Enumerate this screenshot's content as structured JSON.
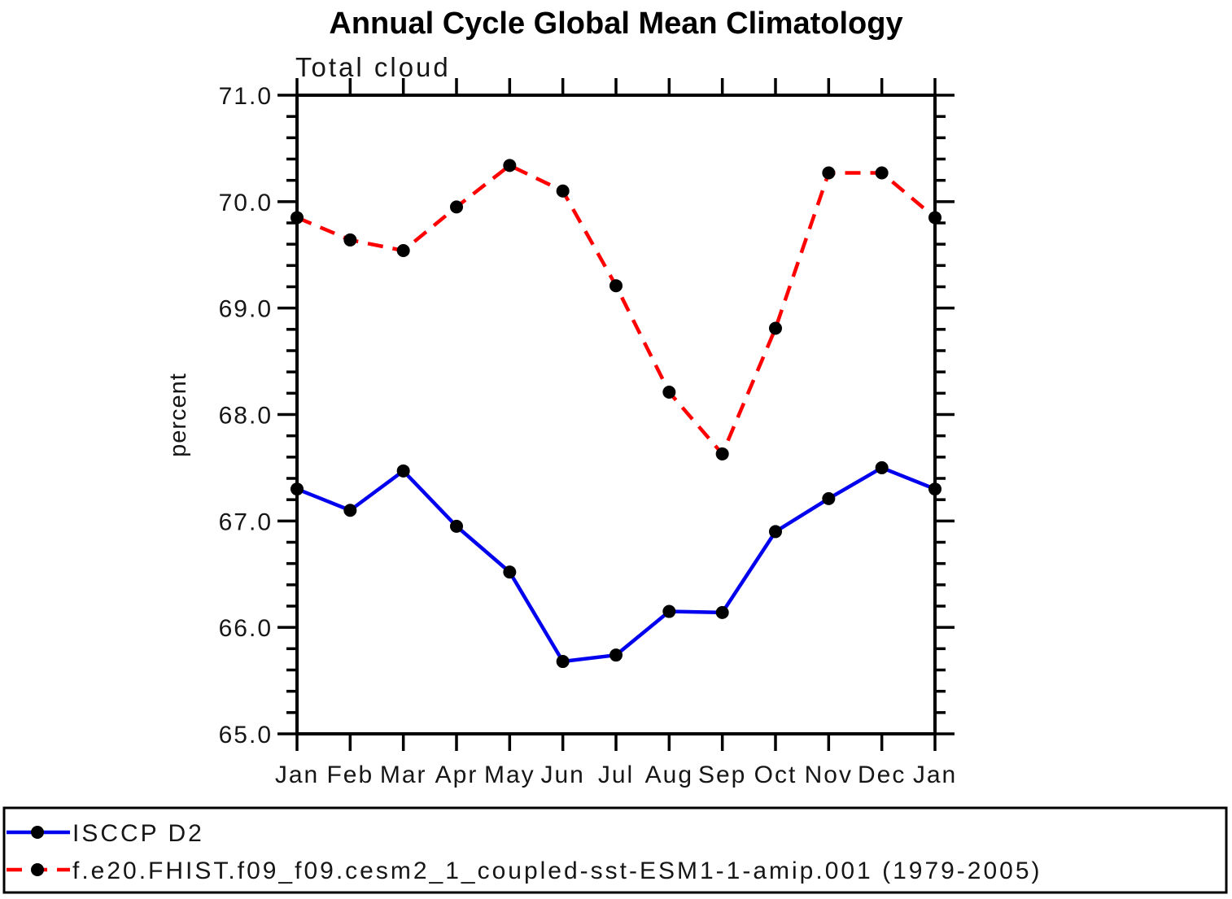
{
  "page": {
    "background": "#ffffff"
  },
  "chart_data": {
    "type": "line",
    "title": "Annual Cycle Global Mean Climatology",
    "subtitle": "Total cloud",
    "xlabel": "",
    "ylabel": "percent",
    "categories": [
      "Jan",
      "Feb",
      "Mar",
      "Apr",
      "May",
      "Jun",
      "Jul",
      "Aug",
      "Sep",
      "Oct",
      "Nov",
      "Dec",
      "Jan"
    ],
    "ylim": [
      65.0,
      71.0
    ],
    "ytick_step": 1.0,
    "ytick_minor_step": 0.2,
    "ytick_labels": [
      "65.0",
      "66.0",
      "67.0",
      "68.0",
      "69.0",
      "70.0",
      "71.0"
    ],
    "grid": false,
    "legend_position": "bottom-box",
    "axis_color": "#000000",
    "marker_color": "#000000",
    "series": [
      {
        "name": "ISCCP D2",
        "color": "#0000ee",
        "line_style": "solid",
        "marker": "filled-circle",
        "values": [
          67.3,
          67.1,
          67.47,
          66.95,
          66.52,
          65.68,
          65.74,
          66.15,
          66.14,
          66.9,
          67.21,
          67.5,
          67.3
        ]
      },
      {
        "name": "f.e20.FHIST.f09_f09.cesm2_1_coupled-sst-ESM1-1-amip.001 (1979-2005)",
        "color": "#ff0000",
        "line_style": "dashed",
        "marker": "filled-circle",
        "values": [
          69.85,
          69.64,
          69.54,
          69.95,
          70.34,
          70.1,
          69.21,
          68.21,
          67.63,
          68.81,
          70.27,
          70.27,
          69.85
        ]
      }
    ]
  }
}
